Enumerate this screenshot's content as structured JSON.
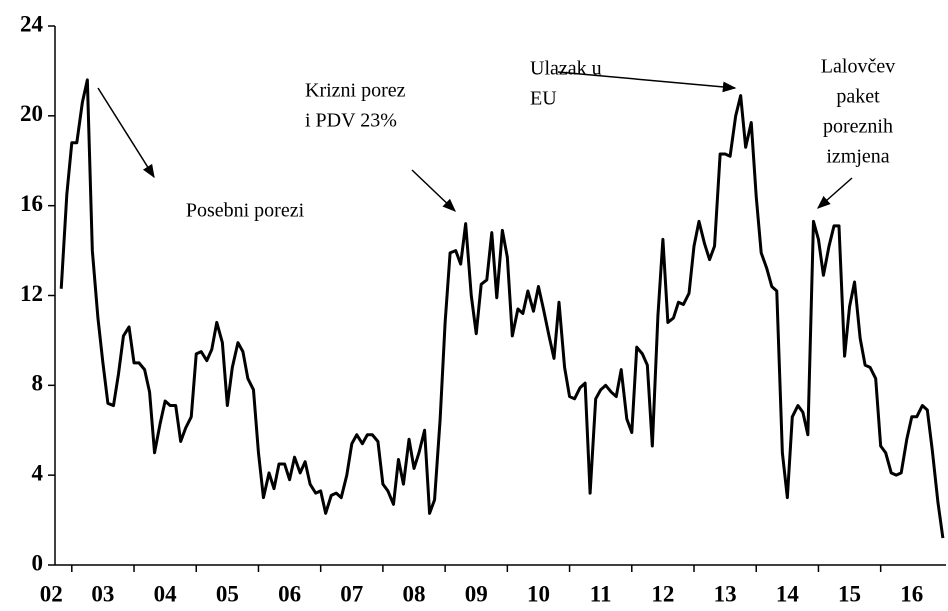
{
  "chart_data": {
    "type": "line",
    "x": [
      2002.83,
      2002.92,
      2003,
      2003.08,
      2003.17,
      2003.25,
      2003.33,
      2003.42,
      2003.5,
      2003.58,
      2003.67,
      2003.75,
      2003.83,
      2003.92,
      2004,
      2004.08,
      2004.17,
      2004.25,
      2004.33,
      2004.42,
      2004.5,
      2004.58,
      2004.67,
      2004.75,
      2004.83,
      2004.92,
      2005,
      2005.08,
      2005.17,
      2005.25,
      2005.33,
      2005.42,
      2005.5,
      2005.58,
      2005.67,
      2005.75,
      2005.83,
      2005.92,
      2006,
      2006.08,
      2006.17,
      2006.25,
      2006.33,
      2006.42,
      2006.5,
      2006.58,
      2006.67,
      2006.75,
      2006.83,
      2006.92,
      2007,
      2007.08,
      2007.17,
      2007.25,
      2007.33,
      2007.42,
      2007.5,
      2007.58,
      2007.67,
      2007.75,
      2007.83,
      2007.92,
      2008,
      2008.08,
      2008.17,
      2008.25,
      2008.33,
      2008.42,
      2008.5,
      2008.58,
      2008.67,
      2008.75,
      2008.83,
      2008.92,
      2009,
      2009.08,
      2009.17,
      2009.25,
      2009.33,
      2009.42,
      2009.5,
      2009.58,
      2009.67,
      2009.75,
      2009.83,
      2009.92,
      2010,
      2010.08,
      2010.17,
      2010.25,
      2010.33,
      2010.42,
      2010.5,
      2010.58,
      2010.67,
      2010.75,
      2010.83,
      2010.92,
      2011,
      2011.08,
      2011.17,
      2011.25,
      2011.33,
      2011.42,
      2011.5,
      2011.58,
      2011.67,
      2011.75,
      2011.83,
      2011.92,
      2012,
      2012.08,
      2012.17,
      2012.25,
      2012.33,
      2012.42,
      2012.5,
      2012.58,
      2012.67,
      2012.75,
      2012.83,
      2012.92,
      2013,
      2013.08,
      2013.17,
      2013.25,
      2013.33,
      2013.42,
      2013.5,
      2013.58,
      2013.67,
      2013.75,
      2013.83,
      2013.92,
      2014,
      2014.08,
      2014.17,
      2014.25,
      2014.33,
      2014.42,
      2014.5,
      2014.58,
      2014.67,
      2014.75,
      2014.83,
      2014.92,
      2015,
      2015.08,
      2015.17,
      2015.25,
      2015.33,
      2015.42,
      2015.5,
      2015.58,
      2015.67,
      2015.75,
      2015.83,
      2015.92,
      2016,
      2016.08,
      2016.17,
      2016.25,
      2016.33,
      2016.42,
      2016.5,
      2016.58,
      2016.67,
      2016.75,
      2016.83,
      2016.92,
      2017
    ],
    "series": [
      {
        "color": "#000000",
        "values": [
          12.3,
          16.5,
          18.8,
          18.8,
          20.6,
          21.6,
          14,
          11,
          9,
          7.2,
          7.1,
          8.5,
          10.2,
          10.6,
          9,
          9,
          8.7,
          7.7,
          5,
          6.3,
          7.3,
          7.1,
          7.1,
          5.5,
          6.1,
          6.6,
          9.4,
          9.5,
          9.1,
          9.6,
          10.8,
          9.9,
          7.1,
          8.8,
          9.9,
          9.5,
          8.3,
          7.8,
          5,
          3,
          4.1,
          3.4,
          4.5,
          4.5,
          3.8,
          4.8,
          4.1,
          4.6,
          3.6,
          3.2,
          3.3,
          2.3,
          3.1,
          3.2,
          3,
          4,
          5.4,
          5.8,
          5.4,
          5.8,
          5.8,
          5.5,
          3.6,
          3.3,
          2.7,
          4.7,
          3.6,
          5.6,
          4.3,
          5,
          6,
          2.3,
          2.9,
          6.5,
          10.8,
          13.9,
          14,
          13.4,
          15.2,
          12,
          10.3,
          12.5,
          12.7,
          14.8,
          11.9,
          14.9,
          13.7,
          10.2,
          11.4,
          11.2,
          12.2,
          11.3,
          12.4,
          11.4,
          10.2,
          9.2,
          11.7,
          8.8,
          7.5,
          7.4,
          7.9,
          8.1,
          3.2,
          7.4,
          7.8,
          8,
          7.7,
          7.5,
          8.7,
          6.5,
          5.9,
          9.7,
          9.4,
          8.9,
          5.3,
          11.1,
          14.5,
          10.8,
          11,
          11.7,
          11.6,
          12.1,
          14.2,
          15.3,
          14.3,
          13.6,
          14.2,
          18.3,
          18.3,
          18.2,
          20,
          20.9,
          18.6,
          19.7,
          16.4,
          13.9,
          13.2,
          12.4,
          12.2,
          5,
          3,
          6.6,
          7.1,
          6.8,
          5.8,
          15.3,
          14.5,
          12.9,
          14.2,
          15.1,
          15.1,
          9.3,
          11.5,
          12.6,
          10.1,
          8.9,
          8.8,
          8.3,
          5.3,
          5,
          4.1,
          4,
          4.1,
          5.6,
          6.6,
          6.6,
          7.1,
          6.9,
          5.1,
          2.8,
          1.2
        ]
      }
    ],
    "xlim": [
      2002.73,
      2017.05
    ],
    "xticks": [
      2003,
      2004,
      2005,
      2006,
      2007,
      2008,
      2009,
      2010,
      2011,
      2012,
      2013,
      2014,
      2015,
      2016
    ],
    "xlabels": [
      {
        "value": 2002.67,
        "label": "02"
      },
      {
        "value": 2003.5,
        "label": "03"
      },
      {
        "value": 2004.5,
        "label": "04"
      },
      {
        "value": 2005.5,
        "label": "05"
      },
      {
        "value": 2006.5,
        "label": "06"
      },
      {
        "value": 2007.5,
        "label": "07"
      },
      {
        "value": 2008.5,
        "label": "08"
      },
      {
        "value": 2009.5,
        "label": "09"
      },
      {
        "value": 2010.5,
        "label": "10"
      },
      {
        "value": 2011.5,
        "label": "11"
      },
      {
        "value": 2012.5,
        "label": "12"
      },
      {
        "value": 2013.5,
        "label": "13"
      },
      {
        "value": 2014.5,
        "label": "14"
      },
      {
        "value": 2015.5,
        "label": "15"
      },
      {
        "value": 2016.5,
        "label": "16"
      }
    ],
    "ylim": [
      0,
      24
    ],
    "yticks": [
      0,
      4,
      8,
      12,
      16,
      20,
      24
    ],
    "grid": false,
    "annotations": [
      {
        "lines": [
          "Posebni porezi"
        ]
      },
      {
        "lines": [
          "Krizni porez",
          "i PDV 23%"
        ]
      },
      {
        "lines": [
          "Ulazak u",
          "EU"
        ]
      },
      {
        "lines": [
          "Lalovčev",
          "paket",
          "poreznih",
          "izmjena"
        ]
      }
    ]
  }
}
